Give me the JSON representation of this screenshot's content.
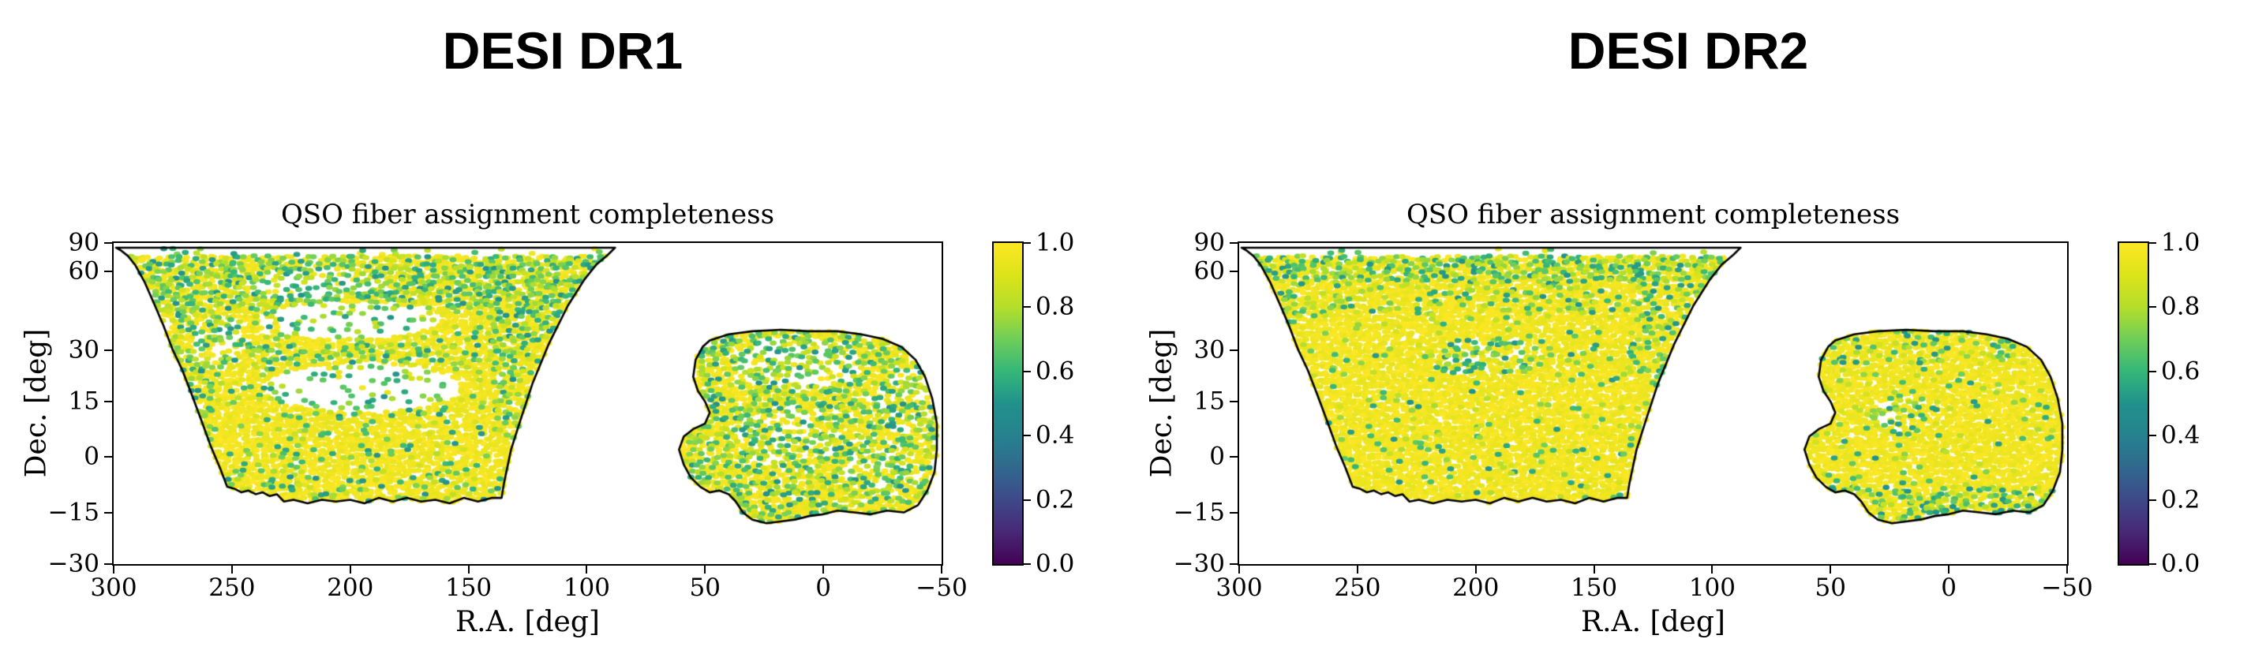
{
  "page": {
    "background": "#ffffff",
    "text_color": "#000000"
  },
  "chart_data": [
    {
      "type": "scatter",
      "panel_title": "DESI DR1",
      "title": "QSO fiber assignment completeness",
      "xlabel": "R.A. [deg]",
      "ylabel": "Dec. [deg]",
      "xlim": [
        300,
        -50
      ],
      "ylim_deg": [
        -30,
        90
      ],
      "y_projection": "sin(dec)",
      "grid": false,
      "xticks": [
        300,
        250,
        200,
        150,
        100,
        50,
        0,
        -50
      ],
      "xtick_labels": [
        "300",
        "250",
        "200",
        "150",
        "100",
        "50",
        "0",
        "−50"
      ],
      "yticks": [
        90,
        60,
        30,
        15,
        0,
        -15,
        -30
      ],
      "ytick_labels": [
        "90",
        "60",
        "30",
        "15",
        "0",
        "−15",
        "−30"
      ],
      "colorbar": {
        "cmap": "viridis",
        "vmin": 0.0,
        "vmax": 1.0,
        "ticks": [
          1.0,
          0.8,
          0.6,
          0.4,
          0.2,
          0.0
        ],
        "tick_labels": [
          "1.0",
          "0.8",
          "0.6",
          "0.4",
          "0.2",
          "0.0"
        ]
      },
      "regions": [
        "ngc",
        "sgc"
      ],
      "scatter": {
        "seed": 20250401,
        "dot_rx": 4.4,
        "dot_ry": 3.2,
        "base_skip": 0.05,
        "green_base": 0.11,
        "polar_dec": 70,
        "polar_skip": 0.93,
        "green_value_range": [
          0.5,
          0.9
        ],
        "yellow_value_range": [
          0.93,
          1.0
        ],
        "green_zones": [
          {
            "ra": [
              300,
              80
            ],
            "dec": [
              44,
              86
            ],
            "p": 0.55
          },
          {
            "ra": [
              255,
              135
            ],
            "dec": [
              26,
              32
            ],
            "p": 0.35
          },
          {
            "ra": [
              300,
              258
            ],
            "dec": [
              -10,
              50
            ],
            "p": 0.38
          },
          {
            "ra": [
              140,
              88
            ],
            "dec": [
              5,
              70
            ],
            "p": 0.38
          },
          {
            "ra": [
              300,
              85
            ],
            "dec": [
              -13,
              -5
            ],
            "p": 0.2
          },
          {
            "ra": [
              65,
              -55
            ],
            "dec": [
              -20,
              36
            ],
            "p": 0.38
          }
        ],
        "sparse_zones": [
          {
            "ra": 195,
            "dec": 19,
            "rra": 42,
            "rdec": 7,
            "skip": 0.85,
            "green": 0.8
          },
          {
            "ra": 200,
            "dec": 40,
            "rra": 38,
            "rdec": 6.5,
            "skip": 0.8,
            "green": 0.8
          },
          {
            "ra": 215,
            "dec": 55,
            "rra": 30,
            "rdec": 7,
            "skip": 0.55,
            "green": 0.75
          },
          {
            "ra": 255,
            "dec": 33,
            "rra": 12,
            "rdec": 9,
            "skip": 0.45,
            "green": 0.6
          },
          {
            "ra": 10,
            "dec": 26,
            "rra": 28,
            "rdec": 8,
            "skip": 0.5,
            "green": 0.7
          },
          {
            "ra": 15,
            "dec": 5,
            "rra": 22,
            "rdec": 9,
            "skip": 0.35,
            "green": 0.6
          },
          {
            "ra": -25,
            "dec": -3,
            "rra": 16,
            "rdec": 8,
            "skip": 0.3,
            "green": 0.55
          },
          {
            "ra": -35,
            "dec": 15,
            "rra": 14,
            "rdec": 9,
            "skip": 0.35,
            "green": 0.6
          }
        ]
      }
    },
    {
      "type": "scatter",
      "panel_title": "DESI DR2",
      "title": "QSO fiber assignment completeness",
      "xlabel": "R.A. [deg]",
      "ylabel": "Dec. [deg]",
      "xlim": [
        300,
        -50
      ],
      "ylim_deg": [
        -30,
        90
      ],
      "y_projection": "sin(dec)",
      "grid": false,
      "xticks": [
        300,
        250,
        200,
        150,
        100,
        50,
        0,
        -50
      ],
      "xtick_labels": [
        "300",
        "250",
        "200",
        "150",
        "100",
        "50",
        "0",
        "−50"
      ],
      "yticks": [
        90,
        60,
        30,
        15,
        0,
        -15,
        -30
      ],
      "ytick_labels": [
        "90",
        "60",
        "30",
        "15",
        "0",
        "−15",
        "−30"
      ],
      "colorbar": {
        "cmap": "viridis",
        "vmin": 0.0,
        "vmax": 1.0,
        "ticks": [
          1.0,
          0.8,
          0.6,
          0.4,
          0.2,
          0.0
        ],
        "tick_labels": [
          "1.0",
          "0.8",
          "0.6",
          "0.4",
          "0.2",
          "0.0"
        ]
      },
      "regions": [
        "ngc",
        "sgc"
      ],
      "scatter": {
        "seed": 77031,
        "dot_rx": 4.4,
        "dot_ry": 3.2,
        "base_skip": 0.02,
        "green_base": 0.055,
        "polar_dec": 70,
        "polar_skip": 0.93,
        "green_value_range": [
          0.5,
          0.9
        ],
        "yellow_value_range": [
          0.93,
          1.0
        ],
        "green_zones": [
          {
            "ra": [
              300,
              80
            ],
            "dec": [
              55,
              86
            ],
            "p": 0.5
          },
          {
            "ra": [
              265,
              135
            ],
            "dec": [
              40,
              55
            ],
            "p": 0.22
          },
          {
            "ra": [
              255,
              140
            ],
            "dec": [
              26,
              32
            ],
            "p": 0.14
          },
          {
            "ra": [
              300,
              268
            ],
            "dec": [
              0,
              55
            ],
            "p": 0.25
          },
          {
            "ra": [
              135,
              90
            ],
            "dec": [
              20,
              65
            ],
            "p": 0.28
          },
          {
            "ra": [
              65,
              -55
            ],
            "dec": [
              -20,
              -8
            ],
            "p": 0.42
          },
          {
            "ra": [
              65,
              -55
            ],
            "dec": [
              26,
              36
            ],
            "p": 0.22
          }
        ],
        "sparse_zones": [
          {
            "ra": 195,
            "dec": 28,
            "rra": 26,
            "rdec": 6,
            "skip": 0.2,
            "green": 0.4
          },
          {
            "ra": 18,
            "dec": 12,
            "rra": 16,
            "rdec": 6,
            "skip": 0.22,
            "green": 0.4
          }
        ]
      }
    }
  ],
  "footprints": {
    "ngc": [
      [
        299,
        78
      ],
      [
        88,
        78
      ],
      [
        91,
        71
      ],
      [
        96,
        64
      ],
      [
        101,
        56
      ],
      [
        108,
        45
      ],
      [
        116,
        32
      ],
      [
        123,
        20
      ],
      [
        128,
        10
      ],
      [
        132,
        2
      ],
      [
        135,
        -7
      ],
      [
        136,
        -11
      ],
      [
        140,
        -11
      ],
      [
        146,
        -12
      ],
      [
        152,
        -11
      ],
      [
        158,
        -12.5
      ],
      [
        164,
        -11.5
      ],
      [
        170,
        -12
      ],
      [
        176,
        -11
      ],
      [
        182,
        -12
      ],
      [
        188,
        -11
      ],
      [
        194,
        -12.5
      ],
      [
        200,
        -11.5
      ],
      [
        206,
        -12
      ],
      [
        212,
        -11.5
      ],
      [
        218,
        -12.5
      ],
      [
        224,
        -11.5
      ],
      [
        228,
        -12
      ],
      [
        231,
        -10
      ],
      [
        234,
        -10.5
      ],
      [
        237,
        -9.5
      ],
      [
        240,
        -10
      ],
      [
        243,
        -9
      ],
      [
        246,
        -9.5
      ],
      [
        249,
        -8.5
      ],
      [
        252,
        -8
      ],
      [
        255,
        -3
      ],
      [
        259,
        3
      ],
      [
        263,
        10
      ],
      [
        267,
        17
      ],
      [
        271,
        24
      ],
      [
        275,
        30
      ],
      [
        279,
        38
      ],
      [
        283,
        46
      ],
      [
        287,
        55
      ],
      [
        291,
        64
      ],
      [
        294,
        70
      ],
      [
        297,
        75
      ]
    ],
    "sgc": [
      [
        48,
        33
      ],
      [
        40,
        35
      ],
      [
        30,
        36
      ],
      [
        18,
        36.5
      ],
      [
        6,
        36
      ],
      [
        -6,
        36
      ],
      [
        -16,
        35
      ],
      [
        -25,
        33.5
      ],
      [
        -33,
        31
      ],
      [
        -39,
        27
      ],
      [
        -43,
        22
      ],
      [
        -46,
        16
      ],
      [
        -48,
        9
      ],
      [
        -48,
        2
      ],
      [
        -47,
        -4
      ],
      [
        -44,
        -9
      ],
      [
        -40,
        -13
      ],
      [
        -34,
        -15
      ],
      [
        -27,
        -14.5
      ],
      [
        -20,
        -15.5
      ],
      [
        -13,
        -15
      ],
      [
        -6,
        -14.5
      ],
      [
        0,
        -15.5
      ],
      [
        6,
        -16
      ],
      [
        12,
        -17
      ],
      [
        18,
        -17.5
      ],
      [
        24,
        -18
      ],
      [
        30,
        -17
      ],
      [
        34,
        -15
      ],
      [
        37,
        -12
      ],
      [
        40,
        -10
      ],
      [
        44,
        -9
      ],
      [
        48,
        -9.5
      ],
      [
        52,
        -8
      ],
      [
        56,
        -5.5
      ],
      [
        59,
        -2
      ],
      [
        61,
        2
      ],
      [
        59,
        5.5
      ],
      [
        55,
        7.5
      ],
      [
        50,
        9
      ],
      [
        48,
        12
      ],
      [
        50,
        15
      ],
      [
        53,
        18
      ],
      [
        55,
        22
      ],
      [
        54,
        27
      ],
      [
        51,
        31
      ]
    ]
  },
  "style": {
    "viridis_stops": [
      [
        0.0,
        "#440154"
      ],
      [
        0.1,
        "#482878"
      ],
      [
        0.2,
        "#3e4989"
      ],
      [
        0.3,
        "#31688e"
      ],
      [
        0.4,
        "#26828e"
      ],
      [
        0.5,
        "#21918c"
      ],
      [
        0.6,
        "#35b779"
      ],
      [
        0.7,
        "#6ece58"
      ],
      [
        0.8,
        "#b5de2b"
      ],
      [
        0.9,
        "#dce319"
      ],
      [
        1.0,
        "#fde725"
      ]
    ],
    "outline_color": "#000000",
    "outline_width": 2.6
  }
}
